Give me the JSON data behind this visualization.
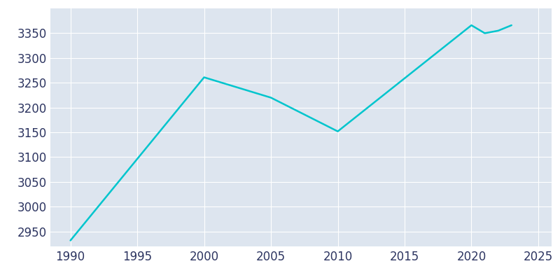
{
  "years": [
    1990,
    2000,
    2005,
    2010,
    2020,
    2021,
    2022,
    2023
  ],
  "population": [
    2932,
    3261,
    3220,
    3152,
    3366,
    3350,
    3355,
    3366
  ],
  "line_color": "#00c5cd",
  "plot_bg_color": "#dde5ef",
  "fig_bg_color": "#ffffff",
  "xlim": [
    1988.5,
    2026
  ],
  "ylim": [
    2920,
    3400
  ],
  "xticks": [
    1990,
    1995,
    2000,
    2005,
    2010,
    2015,
    2020,
    2025
  ],
  "yticks": [
    2950,
    3000,
    3050,
    3100,
    3150,
    3200,
    3250,
    3300,
    3350
  ],
  "grid_color": "#ffffff",
  "line_width": 1.8,
  "tick_label_color": "#2d3561",
  "tick_fontsize": 12
}
